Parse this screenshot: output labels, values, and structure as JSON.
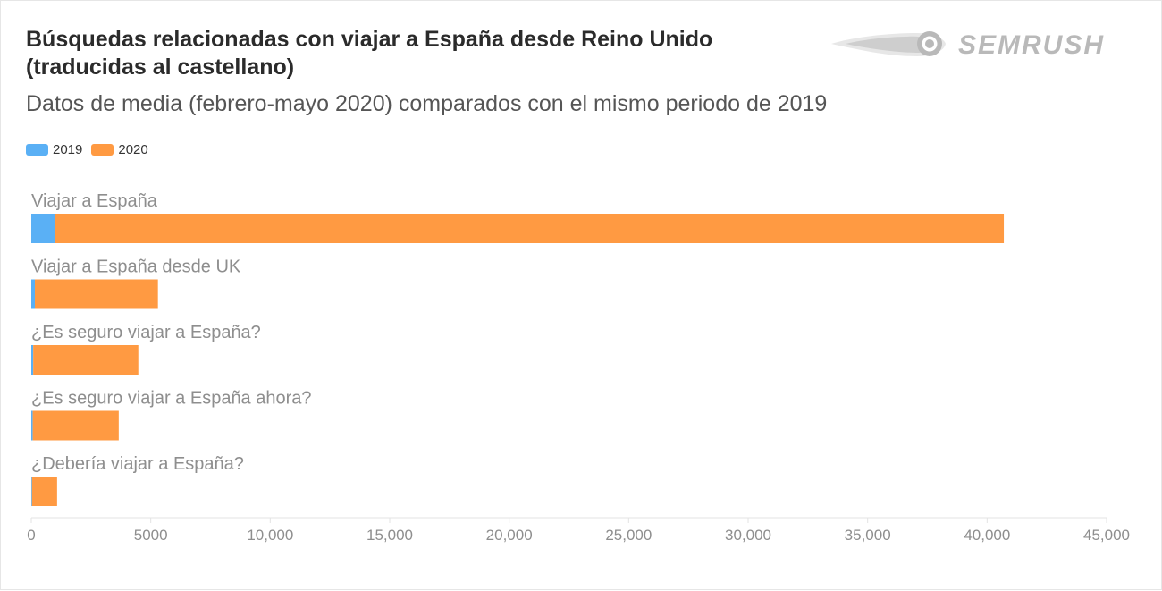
{
  "header": {
    "title": "Búsquedas relacionadas con viajar a España desde Reino Unido (traducidas al castellano)",
    "subtitle": "Datos de media (febrero-mayo 2020) comparados con el mismo periodo de 2019",
    "logo_text": "SEMRUSH"
  },
  "colors": {
    "series_2019": "#5ab0f5",
    "series_2020": "#ff9a42",
    "logo": "#b9b9b9",
    "category_label": "#8e8e8e",
    "tick_label": "#8e8e8e"
  },
  "chart_data": {
    "type": "bar",
    "orientation": "horizontal",
    "stacked": true,
    "categories": [
      "Viajar a España",
      "Viajar a España desde UK",
      "¿Es seguro viajar a España?",
      "¿Es seguro viajar a España ahora?",
      "¿Debería viajar a España?"
    ],
    "series": [
      {
        "name": "2019",
        "values": [
          1000,
          150,
          80,
          60,
          30
        ]
      },
      {
        "name": "2020",
        "values": [
          39700,
          5150,
          4400,
          3600,
          1050
        ]
      }
    ],
    "xlim": [
      0,
      45000
    ],
    "xticks": [
      0,
      5000,
      10000,
      15000,
      20000,
      25000,
      30000,
      35000,
      40000,
      45000
    ],
    "xtick_labels": [
      "0",
      "5000",
      "10,000",
      "15,000",
      "20,000",
      "25,000",
      "30,000",
      "35,000",
      "40,000",
      "45,000"
    ],
    "legend_position": "top-left",
    "grid": false
  }
}
